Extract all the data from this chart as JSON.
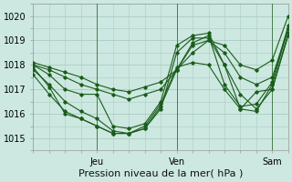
{
  "title": "",
  "xlabel": "Pression niveau de la mer( hPa )",
  "ylim": [
    1014.5,
    1020.5
  ],
  "xlim": [
    0,
    96
  ],
  "yticks": [
    1015,
    1016,
    1017,
    1018,
    1019,
    1020
  ],
  "xtick_positions": [
    24,
    54,
    90
  ],
  "xtick_labels": [
    "Jeu",
    "Ven",
    "Sam"
  ],
  "bg_color": "#cce8e0",
  "grid_color": "#aaccC4",
  "line_color": "#1a5c1a",
  "series": [
    [
      0,
      1018.0,
      6,
      1017.8,
      12,
      1017.5,
      18,
      1017.2,
      24,
      1017.0,
      30,
      1016.8,
      36,
      1016.6,
      42,
      1016.8,
      48,
      1017.0,
      54,
      1017.8,
      60,
      1018.8,
      66,
      1019.0,
      72,
      1018.5,
      78,
      1017.5,
      84,
      1017.2,
      90,
      1017.5,
      96,
      1019.5
    ],
    [
      0,
      1018.1,
      6,
      1017.9,
      12,
      1017.7,
      18,
      1017.5,
      24,
      1017.2,
      30,
      1017.0,
      36,
      1016.9,
      42,
      1017.1,
      48,
      1017.3,
      54,
      1017.8,
      60,
      1018.5,
      66,
      1019.0,
      72,
      1018.8,
      78,
      1018.0,
      84,
      1017.8,
      90,
      1018.2,
      96,
      1020.0
    ],
    [
      0,
      1018.0,
      6,
      1017.6,
      12,
      1017.0,
      18,
      1016.8,
      24,
      1016.8,
      30,
      1015.5,
      36,
      1015.4,
      42,
      1015.6,
      48,
      1016.5,
      54,
      1018.8,
      60,
      1019.2,
      66,
      1019.3,
      72,
      1018.0,
      78,
      1016.8,
      84,
      1016.2,
      90,
      1017.0,
      96,
      1019.3
    ],
    [
      0,
      1017.8,
      6,
      1017.2,
      12,
      1016.5,
      18,
      1016.1,
      24,
      1015.8,
      30,
      1015.3,
      36,
      1015.2,
      42,
      1015.4,
      48,
      1016.2,
      54,
      1018.5,
      60,
      1019.1,
      66,
      1019.1,
      72,
      1018.0,
      78,
      1016.2,
      84,
      1016.1,
      90,
      1017.2,
      96,
      1019.5
    ],
    [
      0,
      1017.6,
      6,
      1016.8,
      12,
      1016.1,
      18,
      1015.8,
      24,
      1015.5,
      30,
      1015.2,
      36,
      1015.2,
      42,
      1015.4,
      48,
      1016.3,
      54,
      1017.8,
      60,
      1018.9,
      66,
      1019.2,
      72,
      1017.2,
      78,
      1016.3,
      84,
      1016.4,
      90,
      1017.3,
      96,
      1019.6
    ],
    [
      0,
      1017.9,
      6,
      1017.1,
      12,
      1016.0,
      18,
      1015.8,
      24,
      1015.5,
      30,
      1015.2,
      36,
      1015.2,
      42,
      1015.5,
      48,
      1016.4,
      54,
      1017.9,
      60,
      1018.1,
      66,
      1018.0,
      72,
      1017.0,
      78,
      1016.2,
      84,
      1016.9,
      90,
      1017.0,
      96,
      1019.2
    ]
  ],
  "vline_positions": [
    24,
    54,
    90
  ],
  "tick_fontsize": 7,
  "label_fontsize": 8
}
